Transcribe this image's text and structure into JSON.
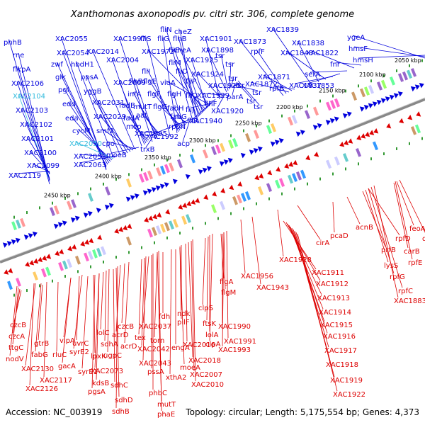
{
  "title": "Xanthomonas axonopodis pv. citri str. 306, complete genome",
  "accession": "Accession: NC_003919",
  "summary": "Topology: circular; Length: 5,175,554 bp; Genes: 4,373",
  "colors": {
    "upper": "#0000dd",
    "lower": "#dd0000",
    "highlight": "#33bbdd",
    "backbone": "#888888"
  },
  "kbp_ticks": [
    "2050 kbp",
    "2100 kbp",
    "2150 kbp",
    "2200 kbp",
    "2250 kbp",
    "2300 kbp",
    "2350 kbp",
    "2400 kbp",
    "2450 kbp"
  ],
  "upper_labels": [
    "phhB",
    "rne",
    "flkpA",
    "XAC2106",
    "XAC2104",
    "XAC2103",
    "XAC2102",
    "XAC2101",
    "XAC2100",
    "XAC2099",
    "XAC2119",
    "XAC2055",
    "XAC2054",
    "zwf",
    "glk",
    "pgl",
    "edd",
    "eda",
    "cycM",
    "XAC2050",
    "XAC2051",
    "XAC2063",
    "hbdH1",
    "ppsA",
    "yggB",
    "XAC2031",
    "XAC2029",
    "smf2",
    "cpo",
    "moeB",
    "XAC2014",
    "XAC2004",
    "XAC2009",
    "fadB",
    "fadA",
    "mcp",
    "trxB",
    "XAC1997",
    "flhB",
    "infA",
    "mutT",
    "aat",
    "XAC1995",
    "fliS",
    "fliG",
    "fliI",
    "flgE",
    "flgF",
    "flgG",
    "flgH",
    "fabH",
    "fabG",
    "rpoN",
    "acp",
    "XAC1992",
    "fliN",
    "cheZ",
    "fliE",
    "flhB",
    "fliM",
    "fliO",
    "fliP",
    "fliQ",
    "XAC1972",
    "XAC1925",
    "cheA",
    "vioA",
    "fliJ",
    "fliR",
    "flhF",
    "XAC1940",
    "XAC1901",
    "XAC1924",
    "XAC1921",
    "XAC1929",
    "XAC1920",
    "XAC1898",
    "tsr",
    "tsr",
    "tsr",
    "tsr",
    "tsr",
    "parA",
    "tsr",
    "tsr",
    "XAC1873",
    "rpfF",
    "XAC1872",
    "XAC1871",
    "rpfB",
    "XAC1839",
    "XAC1838",
    "XAC1848",
    "XAC1837",
    "XAC1853",
    "serA",
    "XAC1822",
    "fnr",
    "ygeA",
    "hmsF",
    "hmsH"
  ],
  "lower_labels": [
    "czcB",
    "czcA",
    "ttgC",
    "nodV",
    "gtrB",
    "fabG",
    "rluC",
    "XAC2130",
    "XAC2117",
    "XAC2126",
    "vipA",
    "uvrC",
    "syrE2",
    "gacA",
    "lpxK",
    "syrE1",
    "kdsB",
    "pgsA",
    "lolC",
    "sdhA",
    "ugpC",
    "XAC2073",
    "sdhC",
    "sdhD",
    "sdhB",
    "czcB",
    "acrD",
    "acrD",
    "tex",
    "XAC2042",
    "XAC2043",
    "pssA",
    "phbC",
    "mutT",
    "phaE",
    "XAC2037",
    "fdh",
    "torn",
    "engA",
    "moeA",
    "xthA2",
    "pilF",
    "ndk",
    "XAC2016",
    "XAC2018",
    "XAC2007",
    "XAC2010",
    "clpS",
    "ftsK",
    "lolA",
    "flgA",
    "flgM",
    "XAC1990",
    "XAC1991",
    "XAC1993",
    "clpA",
    "XAC1956",
    "XAC1943",
    "XAC1928",
    "cirA",
    "XAC1911",
    "XAC1912",
    "XAC1913",
    "XAC1914",
    "XAC1915",
    "XAC1916",
    "XAC1917",
    "XAC1918",
    "XAC1919",
    "XAC1922",
    "pcaD",
    "acnB",
    "rpfD",
    "prfB",
    "lysS",
    "rpfG",
    "rpfC",
    "XAC1883",
    "feoA",
    "dapB",
    "carB",
    "rpfE"
  ]
}
